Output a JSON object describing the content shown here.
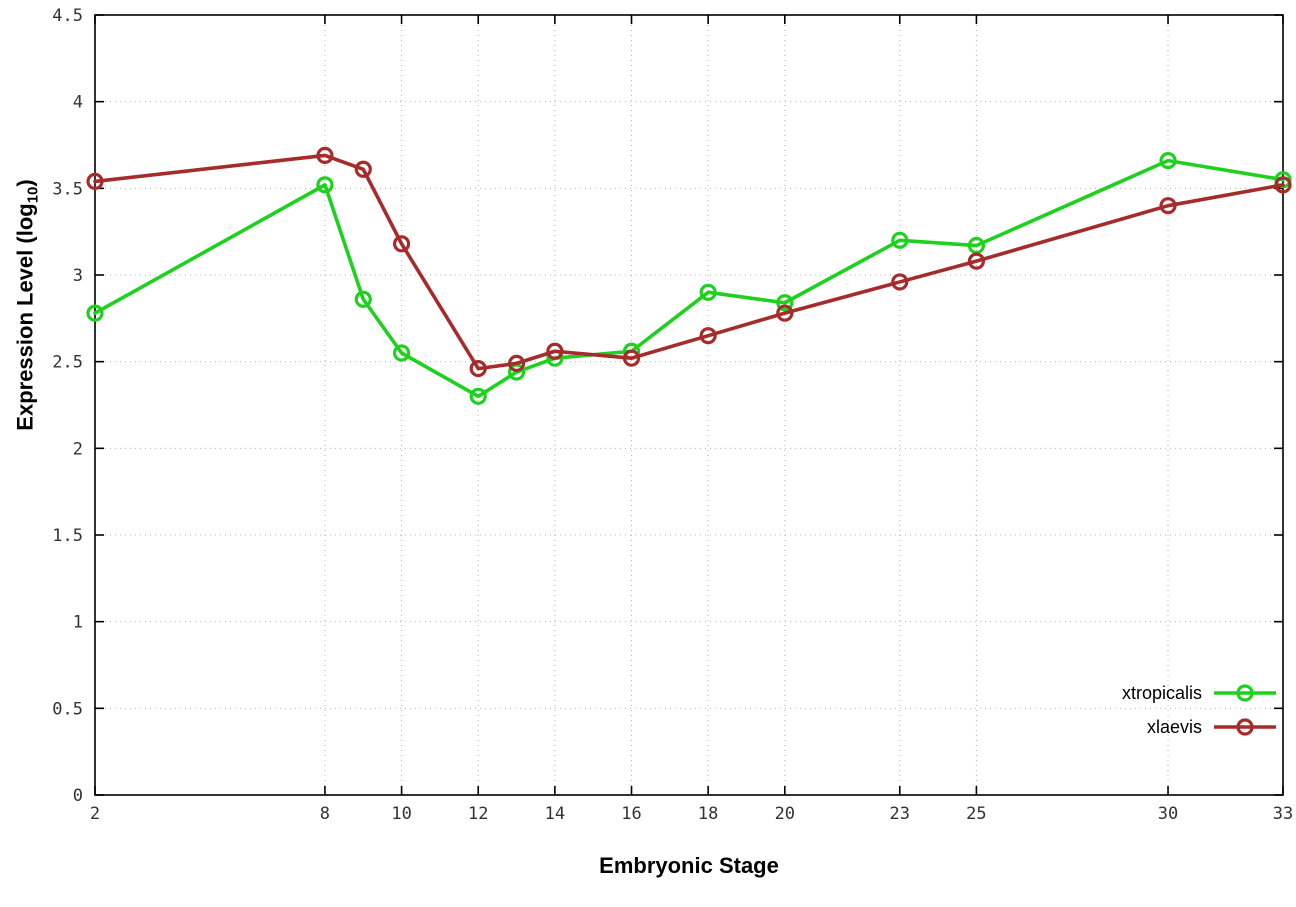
{
  "chart_data": {
    "type": "line",
    "title": "",
    "xlabel": "Embryonic Stage",
    "ylabel": "Expression Level (log10)",
    "xlim": [
      2,
      33
    ],
    "ylim": [
      0,
      4.5
    ],
    "x_ticks": [
      2,
      8,
      10,
      12,
      14,
      16,
      18,
      20,
      23,
      25,
      30,
      33
    ],
    "y_ticks": [
      0,
      0.5,
      1,
      1.5,
      2,
      2.5,
      3,
      3.5,
      4,
      4.5
    ],
    "grid": true,
    "legend_position": "bottom-right",
    "x": [
      2,
      8,
      9,
      10,
      12,
      13,
      14,
      16,
      18,
      20,
      23,
      25,
      30,
      33
    ],
    "series": [
      {
        "name": "xtropicalis",
        "color": "#1fd11f",
        "values": [
          2.78,
          3.52,
          2.86,
          2.55,
          2.3,
          2.44,
          2.52,
          2.56,
          2.9,
          2.84,
          3.2,
          3.17,
          3.66,
          3.55
        ]
      },
      {
        "name": "xlaevis",
        "color": "#a62b2b",
        "values": [
          3.54,
          3.69,
          3.61,
          3.18,
          2.46,
          2.49,
          2.56,
          2.52,
          2.65,
          2.78,
          2.96,
          3.08,
          3.4,
          3.52
        ]
      }
    ]
  },
  "labels": {
    "ylabel_main": "Expression Level (log",
    "ylabel_sub": "10",
    "ylabel_close": ")"
  },
  "colors": {
    "background": "#ffffff",
    "axis": "#000000",
    "grid": "#b4b4b4",
    "tick_text": "#333333"
  }
}
